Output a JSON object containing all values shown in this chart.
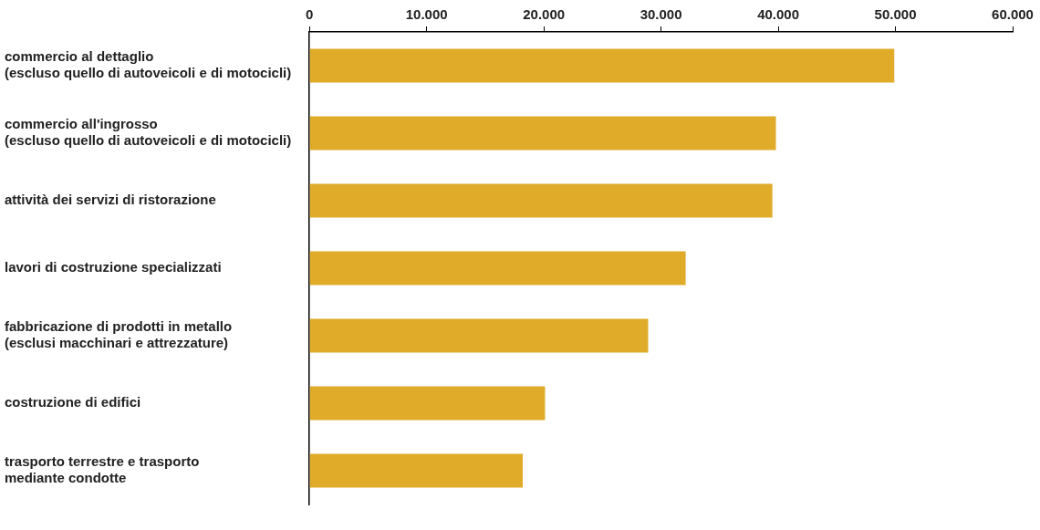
{
  "chart_data": {
    "type": "bar",
    "orientation": "horizontal",
    "categories": [
      "commercio al dettaglio\n(escluso quello di autoveicoli e di motocicli)",
      "commercio all'ingrosso\n(escluso quello di autoveicoli e di motocicli)",
      "attività dei servizi di ristorazione",
      "lavori di costruzione specializzati",
      "fabbricazione di prodotti in metallo\n(esclusi macchinari e attrezzature)",
      "costruzione di edifici",
      "trasporto terrestre e trasporto\nmediante condotte"
    ],
    "values": [
      49900,
      39800,
      39500,
      32100,
      28900,
      20100,
      18200
    ],
    "color": "#dfab29",
    "xlim": [
      0,
      60000
    ],
    "xticks": [
      {
        "value": 0,
        "label": "0"
      },
      {
        "value": 10000,
        "label": "10.000"
      },
      {
        "value": 20000,
        "label": "20.000"
      },
      {
        "value": 30000,
        "label": "30.000"
      },
      {
        "value": 40000,
        "label": "40.000"
      },
      {
        "value": 50000,
        "label": "50.000"
      },
      {
        "value": 60000,
        "label": "60.000"
      }
    ],
    "grid": false,
    "legend": false
  }
}
